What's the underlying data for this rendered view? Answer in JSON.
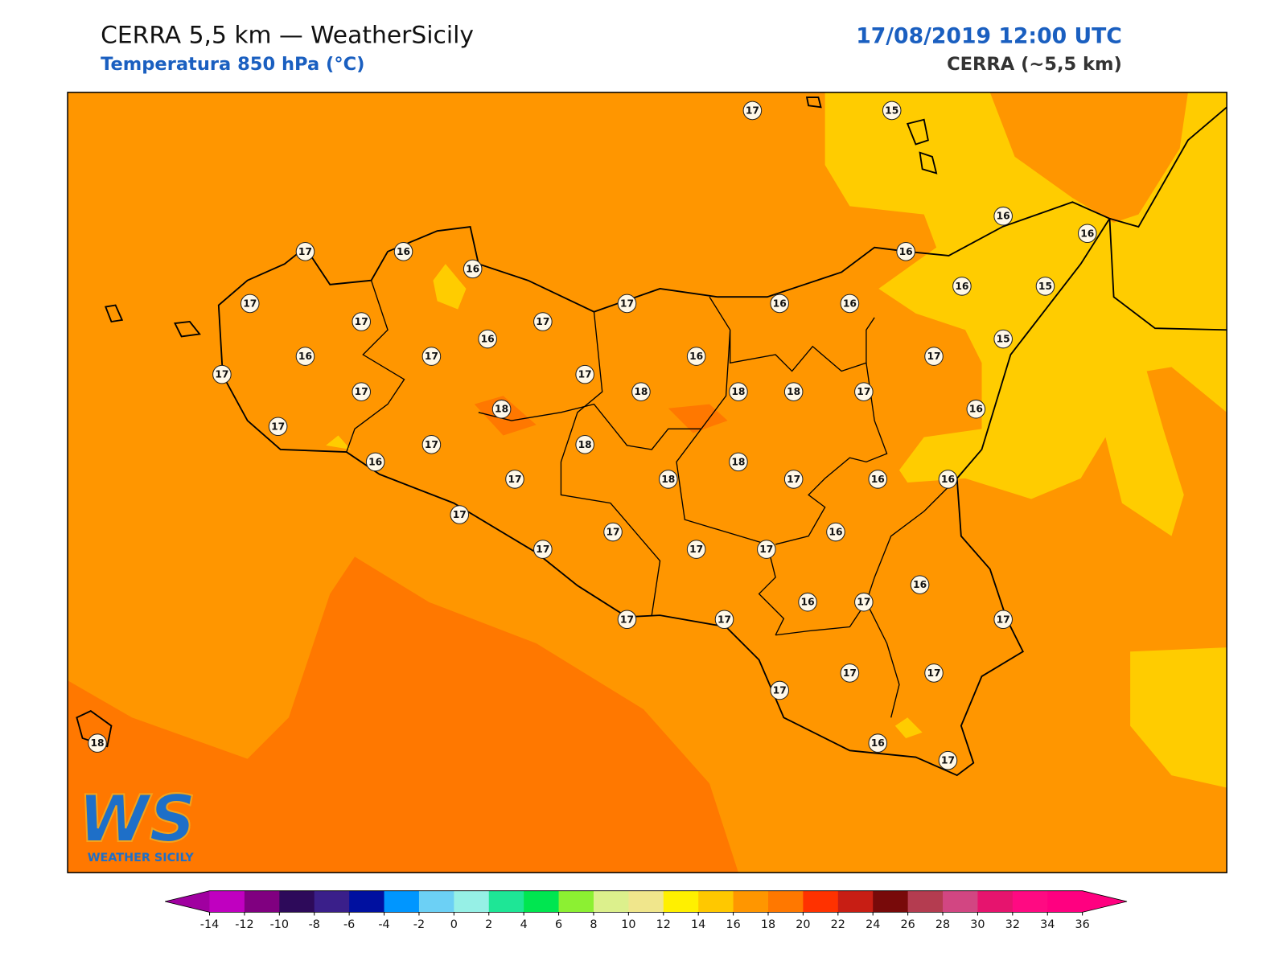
{
  "header": {
    "title": "CERRA 5,5 km — WeatherSicily",
    "subtitle": "Temperatura 850 hPa (°C)",
    "date": "17/08/2019 12:00 UTC",
    "model": "CERRA (~5,5 km)"
  },
  "map": {
    "stations": [
      17,
      15,
      17,
      16,
      16,
      17,
      17,
      16,
      17,
      17,
      17,
      17,
      16,
      17,
      17,
      17,
      18,
      18,
      17,
      16,
      17,
      18,
      17,
      17,
      17,
      18,
      16,
      18,
      18,
      16,
      16,
      16,
      16,
      16,
      16,
      15,
      15,
      17,
      17,
      16,
      18,
      17,
      16,
      16,
      16,
      17,
      17,
      17,
      17,
      16,
      17,
      16,
      17,
      17,
      17,
      17,
      16,
      17,
      18
    ]
  },
  "colorbar": {
    "ticks": [
      -14,
      -12,
      -10,
      -8,
      -6,
      -4,
      -2,
      0,
      2,
      4,
      6,
      8,
      10,
      12,
      14,
      16,
      18,
      20,
      22,
      24,
      26,
      28,
      30,
      32,
      34,
      36
    ],
    "colors": [
      "#c000c0",
      "#800080",
      "#2d0a5a",
      "#3a1f8a",
      "#0010a0",
      "#0096ff",
      "#6cd0f5",
      "#96f0e6",
      "#1ee696",
      "#00e650",
      "#8cf032",
      "#dcf08c",
      "#f0e68c",
      "#fff000",
      "#ffc800",
      "#ff9600",
      "#ff7800",
      "#ff3200",
      "#c81e14",
      "#780a0a",
      "#b43c50",
      "#d24682",
      "#e6146e",
      "#ff0a82",
      "#ff0080"
    ],
    "extend_colors": [
      "#a000a0",
      "#ff0080"
    ]
  },
  "logo": {
    "mark": "WS",
    "name": "WEATHER SICILY"
  }
}
